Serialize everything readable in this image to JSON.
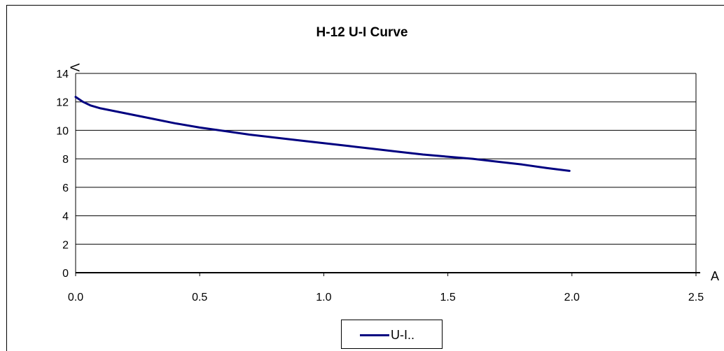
{
  "chart_data": {
    "type": "line",
    "title": "H-12 U-I Curve",
    "xlabel": "A",
    "ylabel": "V",
    "xlim": [
      0,
      2.5
    ],
    "ylim": [
      0,
      14
    ],
    "xticks": [
      "0.0",
      "0.5",
      "1.0",
      "1.5",
      "2.0",
      "2.5"
    ],
    "yticks": [
      "0",
      "2",
      "4",
      "6",
      "8",
      "10",
      "12",
      "14"
    ],
    "grid": "horizontal",
    "legend_position": "bottom",
    "series": [
      {
        "name": "U-I..",
        "color": "#000080",
        "x": [
          0.0,
          0.03,
          0.06,
          0.1,
          0.2,
          0.3,
          0.4,
          0.5,
          0.6,
          0.7,
          0.8,
          0.9,
          1.0,
          1.1,
          1.2,
          1.3,
          1.4,
          1.5,
          1.6,
          1.7,
          1.8,
          1.9,
          1.99
        ],
        "y": [
          12.35,
          12.0,
          11.75,
          11.55,
          11.2,
          10.85,
          10.5,
          10.2,
          9.95,
          9.7,
          9.5,
          9.3,
          9.1,
          8.9,
          8.7,
          8.5,
          8.3,
          8.15,
          8.0,
          7.8,
          7.6,
          7.35,
          7.15
        ]
      }
    ]
  }
}
